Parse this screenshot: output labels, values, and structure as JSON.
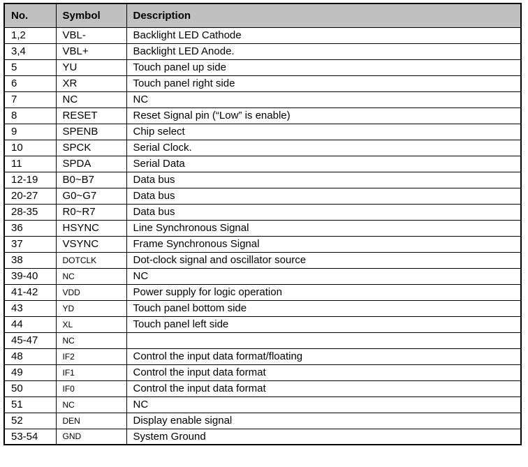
{
  "colors": {
    "header_bg": "#c0c0c0",
    "border": "#000000",
    "text": "#000000",
    "page_bg": "#ffffff"
  },
  "table": {
    "headers": [
      "No.",
      "Symbol",
      "Description"
    ],
    "rows": [
      {
        "no": "1,2",
        "symbol": "VBL-",
        "desc": "Backlight LED Cathode",
        "small_symbol": false
      },
      {
        "no": "3,4",
        "symbol": "VBL+",
        "desc": "Backlight LED Anode.",
        "small_symbol": false
      },
      {
        "no": "5",
        "symbol": "YU",
        "desc": "Touch panel up side",
        "small_symbol": false
      },
      {
        "no": "6",
        "symbol": "XR",
        "desc": "Touch panel right side",
        "small_symbol": false
      },
      {
        "no": "7",
        "symbol": "NC",
        "desc": "NC",
        "small_symbol": false
      },
      {
        "no": "8",
        "symbol": "RESET",
        "desc": "Reset Signal pin (“Low” is enable)",
        "small_symbol": false
      },
      {
        "no": "9",
        "symbol": "SPENB",
        "desc": "Chip select",
        "small_symbol": false
      },
      {
        "no": "10",
        "symbol": "SPCK",
        "desc": "Serial Clock.",
        "small_symbol": false
      },
      {
        "no": "11",
        "symbol": "SPDA",
        "desc": "Serial Data",
        "small_symbol": false
      },
      {
        "no": "12-19",
        "symbol": "B0~B7",
        "desc": "Data bus",
        "small_symbol": false
      },
      {
        "no": "20-27",
        "symbol": "G0~G7",
        "desc": "Data bus",
        "small_symbol": false
      },
      {
        "no": "28-35",
        "symbol": "R0~R7",
        "desc": "Data bus",
        "small_symbol": false
      },
      {
        "no": "36",
        "symbol": "HSYNC",
        "desc": "Line Synchronous Signal",
        "small_symbol": false
      },
      {
        "no": "37",
        "symbol": "VSYNC",
        "desc": "Frame Synchronous Signal",
        "small_symbol": false
      },
      {
        "no": "38",
        "symbol": "DOTCLK",
        "desc": "Dot-clock signal and oscillator source",
        "small_symbol": true
      },
      {
        "no": "39-40",
        "symbol": "NC",
        "desc": "NC",
        "small_symbol": true
      },
      {
        "no": "41-42",
        "symbol": "VDD",
        "desc": "Power supply for logic operation",
        "small_symbol": true
      },
      {
        "no": "43",
        "symbol": "YD",
        "desc": "Touch panel bottom side",
        "small_symbol": true
      },
      {
        "no": "44",
        "symbol": "XL",
        "desc": "Touch panel left side",
        "small_symbol": true
      },
      {
        "no": "45-47",
        "symbol": "NC",
        "desc": "",
        "small_symbol": true
      },
      {
        "no": "48",
        "symbol": "IF2",
        "desc": "Control the input data format/floating",
        "small_symbol": true
      },
      {
        "no": "49",
        "symbol": "IF1",
        "desc": "Control the input data format",
        "small_symbol": true
      },
      {
        "no": "50",
        "symbol": "IF0",
        "desc": "Control the input data format",
        "small_symbol": true
      },
      {
        "no": "51",
        "symbol": "NC",
        "desc": "NC",
        "small_symbol": true
      },
      {
        "no": "52",
        "symbol": "DEN",
        "desc": "Display enable signal",
        "small_symbol": true
      },
      {
        "no": "53-54",
        "symbol": "GND",
        "desc": "System Ground",
        "small_symbol": true
      }
    ]
  }
}
